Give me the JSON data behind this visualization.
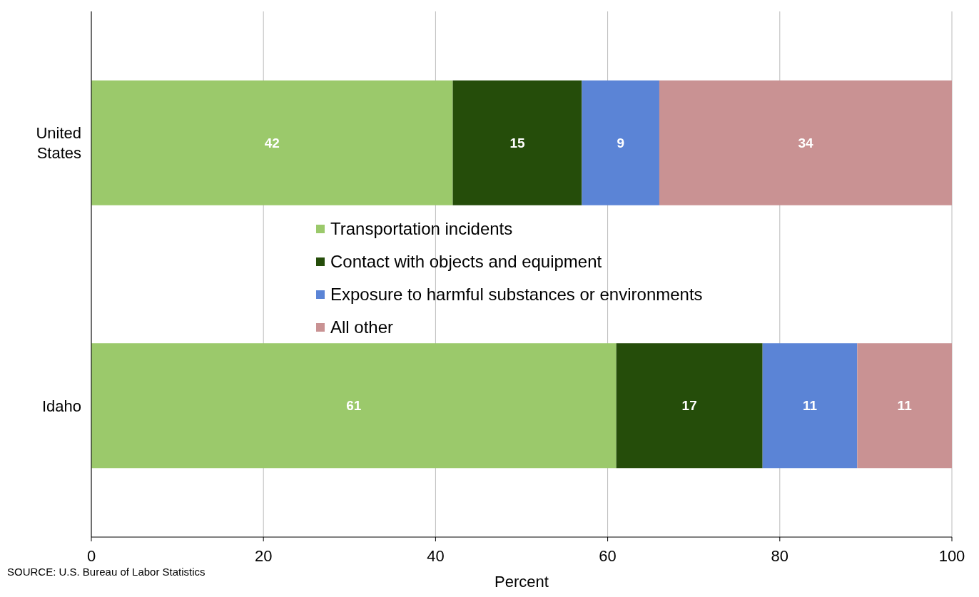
{
  "chart_data": {
    "type": "bar",
    "orientation": "horizontal",
    "stacked": true,
    "categories": [
      "United\nStates",
      "Idaho"
    ],
    "series": [
      {
        "name": "Transportation incidents",
        "color": "#9bc96b",
        "values": [
          42,
          61
        ]
      },
      {
        "name": "Contact with objects and equipment",
        "color": "#254d0a",
        "values": [
          15,
          17
        ]
      },
      {
        "name": "Exposure to harmful substances or environments",
        "color": "#5b84d6",
        "values": [
          9,
          11
        ]
      },
      {
        "name": "All other",
        "color": "#c99293",
        "values": [
          34,
          11
        ]
      }
    ],
    "xlim": [
      0,
      100
    ],
    "xticks": [
      0,
      20,
      40,
      60,
      80,
      100
    ],
    "xlabel": "Percent",
    "grid": "x",
    "legend": "center",
    "data_labels": true,
    "annotations": [
      "SOURCE: U.S. Bureau of Labor Statistics"
    ]
  }
}
